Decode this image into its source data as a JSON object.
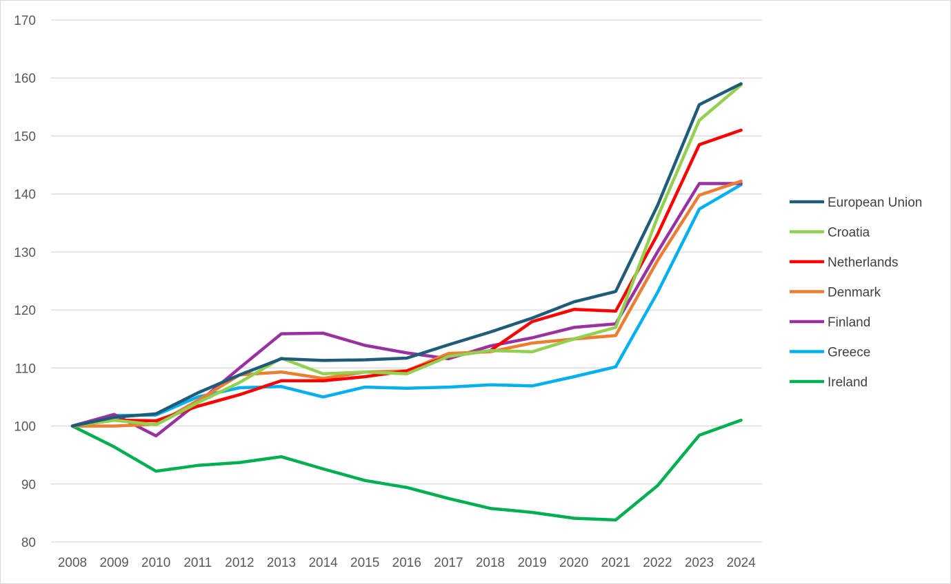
{
  "chart_data": {
    "type": "line",
    "title": "",
    "xlabel": "",
    "ylabel": "",
    "ylim": [
      80,
      170
    ],
    "yticks": [
      80,
      90,
      100,
      110,
      120,
      130,
      140,
      150,
      160,
      170
    ],
    "grid": true,
    "legend_position": "right",
    "x": [
      "2008",
      "2009",
      "2010",
      "2011",
      "2012",
      "2013",
      "2014",
      "2015",
      "2016",
      "2017",
      "2018",
      "2019",
      "2020",
      "2021",
      "2022",
      "2023",
      "2024"
    ],
    "series": [
      {
        "name": "European Union",
        "color": "#1f5c7a",
        "values": [
          100,
          101.5,
          102.1,
          105.7,
          108.8,
          111.6,
          111.3,
          111.4,
          111.7,
          114.0,
          116.2,
          118.6,
          121.4,
          123.2,
          138.0,
          155.4,
          159.0
        ]
      },
      {
        "name": "Croatia",
        "color": "#92d050",
        "values": [
          100,
          101.0,
          100.2,
          104.0,
          107.5,
          111.7,
          109.0,
          109.3,
          109.0,
          112.0,
          113.0,
          112.8,
          115.0,
          117.0,
          136.0,
          152.7,
          158.8
        ]
      },
      {
        "name": "Netherlands",
        "color": "#ff0000",
        "values": [
          100,
          101.0,
          100.9,
          103.4,
          105.4,
          107.8,
          107.8,
          108.5,
          109.5,
          112.0,
          113.0,
          118.0,
          120.1,
          119.8,
          133.0,
          148.5,
          151.0
        ]
      },
      {
        "name": "Denmark",
        "color": "#ed7d31",
        "values": [
          100,
          100.0,
          100.3,
          104.4,
          108.8,
          109.3,
          108.2,
          109.3,
          109.5,
          112.5,
          112.8,
          114.3,
          115.0,
          115.6,
          128.5,
          139.8,
          142.2
        ]
      },
      {
        "name": "Finland",
        "color": "#9932a0",
        "values": [
          100,
          102.0,
          98.3,
          104.0,
          110.0,
          115.9,
          116.0,
          113.9,
          112.6,
          111.6,
          113.8,
          115.2,
          117.0,
          117.6,
          130.0,
          141.8,
          141.8
        ]
      },
      {
        "name": "Greece",
        "color": "#00b0f0",
        "values": [
          100,
          101.8,
          101.9,
          105.0,
          106.6,
          106.8,
          105.0,
          106.7,
          106.5,
          106.7,
          107.1,
          106.9,
          108.5,
          110.2,
          123.0,
          137.4,
          141.6
        ]
      },
      {
        "name": "Ireland",
        "color": "#00b050",
        "values": [
          100,
          96.4,
          92.2,
          93.2,
          93.7,
          94.7,
          92.6,
          90.6,
          89.4,
          87.5,
          85.8,
          85.1,
          84.1,
          83.8,
          89.7,
          98.4,
          101.0
        ]
      }
    ]
  }
}
